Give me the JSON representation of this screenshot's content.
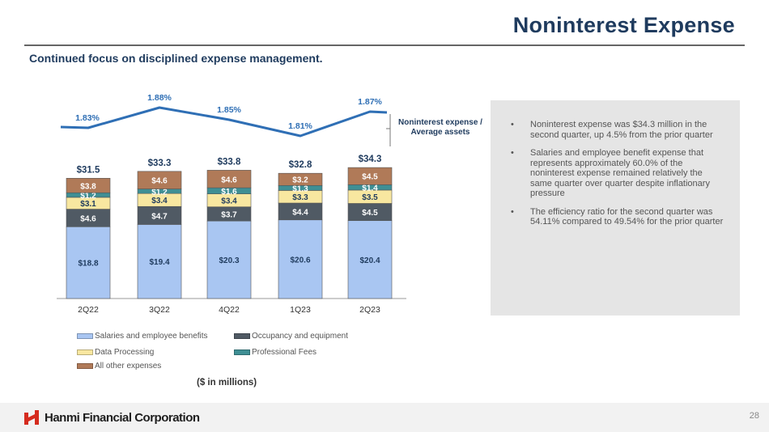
{
  "title": "Noninterest Expense",
  "subtitle": "Continued focus on disciplined expense management.",
  "units_note": "($ in millions)",
  "ratio_label": "Noninterest expense / Average assets",
  "bullets": [
    "Noninterest expense was $34.3 million in the second quarter, up 4.5% from the prior quarter",
    "Salaries and employee benefit expense that represents approximately 60.0% of the noninterest expense remained relatively the same quarter over quarter despite inflationary pressure",
    "The efficiency ratio for the second quarter was 54.11% compared to 49.54% for the prior quarter"
  ],
  "footer": {
    "company": "Hanmi Financial Corporation",
    "page": "28"
  },
  "colors": {
    "salaries": "#a9c6f2",
    "occupancy": "#505a64",
    "data_processing": "#f8e7a0",
    "professional": "#3f8f94",
    "other": "#b07a58",
    "ratio_line": "#2f6fb5"
  },
  "chart_data": {
    "type": "bar",
    "stacked": true,
    "categories": [
      "2Q22",
      "3Q22",
      "4Q22",
      "1Q23",
      "2Q23"
    ],
    "series": [
      {
        "name": "Salaries and employee benefits",
        "color_key": "salaries",
        "values": [
          18.8,
          19.4,
          20.3,
          20.6,
          20.4
        ],
        "labels": [
          "$18.8",
          "$19.4",
          "$20.3",
          "$20.6",
          "$20.4"
        ],
        "label_color": "#1f3b5e"
      },
      {
        "name": "Occupancy and equipment",
        "color_key": "occupancy",
        "values": [
          4.6,
          4.7,
          3.7,
          4.4,
          4.5
        ],
        "labels": [
          "$4.6",
          "$4.7",
          "$3.7",
          "$4.4",
          "$4.5"
        ],
        "label_color": "#ffffff"
      },
      {
        "name": "Data Processing",
        "color_key": "data_processing",
        "values": [
          3.1,
          3.4,
          3.4,
          3.3,
          3.5
        ],
        "labels": [
          "$3.1",
          "$3.4",
          "$3.4",
          "$3.3",
          "$3.5"
        ],
        "label_color": "#1f3b5e"
      },
      {
        "name": "Professional Fees",
        "color_key": "professional",
        "values": [
          1.2,
          1.2,
          1.6,
          1.3,
          1.4
        ],
        "labels": [
          "$1.2",
          "$1.2",
          "$1.6",
          "$1.3",
          "$1.4"
        ],
        "label_color": "#ffffff"
      },
      {
        "name": "All other expenses",
        "color_key": "other",
        "values": [
          3.8,
          4.6,
          4.6,
          3.2,
          4.5
        ],
        "labels": [
          "$3.8",
          "$4.6",
          "$4.6",
          "$3.2",
          "$4.5"
        ],
        "label_color": "#ffffff"
      }
    ],
    "totals": [
      "$31.5",
      "$33.3",
      "$33.8",
      "$32.8",
      "$34.3"
    ],
    "total_values": [
      31.5,
      33.3,
      33.8,
      32.8,
      34.3
    ],
    "ratio_series": {
      "values": [
        1.83,
        1.88,
        1.85,
        1.81,
        1.87
      ],
      "labels": [
        "1.83%",
        "1.88%",
        "1.85%",
        "1.81%",
        "1.87%"
      ]
    },
    "legend_position": "bottom",
    "grid": false
  }
}
